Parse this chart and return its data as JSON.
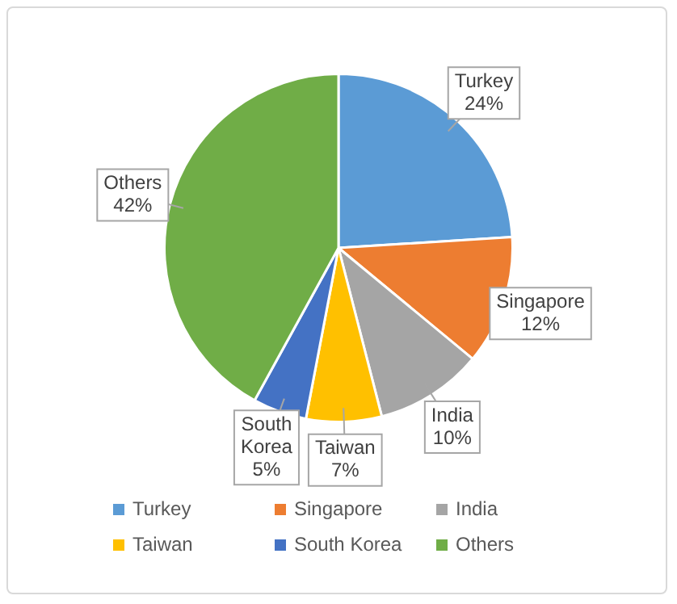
{
  "chart_data": {
    "type": "pie",
    "categories": [
      "Turkey",
      "Singapore",
      "India",
      "Taiwan",
      "South Korea",
      "Others"
    ],
    "values": [
      24,
      12,
      10,
      7,
      5,
      42
    ],
    "value_labels": [
      "24%",
      "12%",
      "10%",
      "7%",
      "5%",
      "42%"
    ],
    "colors": [
      "#5b9bd5",
      "#ed7d31",
      "#a5a5a5",
      "#ffc000",
      "#4472c4",
      "#70ad47"
    ],
    "legend": "bottom"
  }
}
